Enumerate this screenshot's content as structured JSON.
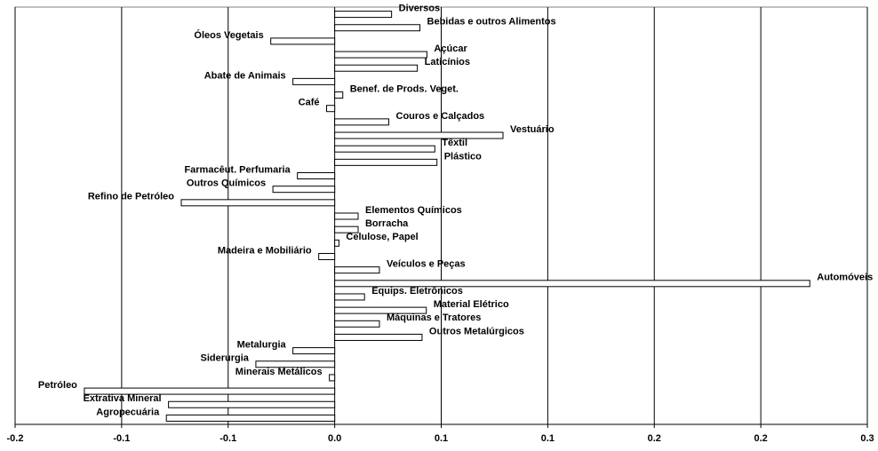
{
  "chart_data": {
    "type": "hbar",
    "categories": [
      "Diversos",
      "Bebidas e outros Alimentos",
      "Óleos Vegetais",
      "Açúcar",
      "Laticínios",
      "Abate de Animais",
      "Benef. de Prods. Veget.",
      "Café",
      "Couros e Calçados",
      "Vestuário",
      "Têxtil",
      "Plástico",
      "Farmacêut. Perfumaria",
      "Outros Químicos",
      "Refino de Petróleo",
      "Elementos Químicos",
      "Borracha",
      "Celulose, Papel",
      "Madeira e Mobiliário",
      "Veículos e Peças",
      "Automóveis",
      "Equips. Eletrônicos",
      "Material Elétrico",
      "Máquinas e Tratores",
      "Outros Metalúrgicos",
      "Metalurgia",
      "Siderurgia",
      "Minerais Metálicos",
      "Petróleo",
      "Extrativa Mineral",
      "Agropecuária"
    ],
    "values": [
      0.0267,
      0.04,
      -0.03,
      0.0433,
      0.0388,
      -0.0196,
      0.0038,
      -0.0038,
      0.0254,
      0.079,
      0.047,
      0.048,
      -0.0175,
      -0.029,
      -0.072,
      0.011,
      0.011,
      0.002,
      -0.0075,
      0.021,
      0.223,
      0.014,
      0.043,
      0.021,
      0.041,
      -0.0196,
      -0.037,
      -0.0025,
      -0.1175,
      -0.078,
      -0.079
    ],
    "color": "#ffffff",
    "xlim": [
      -0.15,
      0.25
    ],
    "xticks": [
      {
        "value": -0.15,
        "label": "-0.2"
      },
      {
        "value": -0.1,
        "label": "-0.1"
      },
      {
        "value": -0.05,
        "label": "-0.1"
      },
      {
        "value": 0,
        "label": "0.0"
      },
      {
        "value": 0.05,
        "label": "0.1"
      },
      {
        "value": 0.1,
        "label": "0.1"
      },
      {
        "value": 0.15,
        "label": "0.2"
      },
      {
        "value": 0.2,
        "label": "0.2"
      },
      {
        "value": 0.25,
        "label": "0.3"
      }
    ],
    "grid": true
  }
}
